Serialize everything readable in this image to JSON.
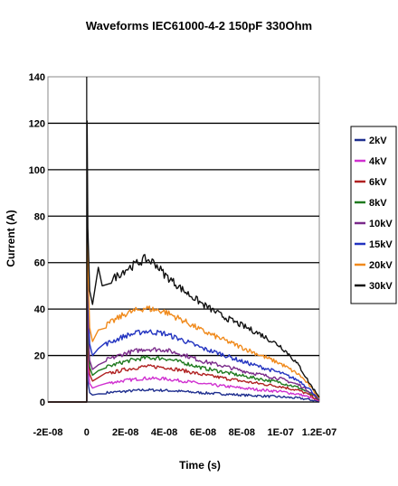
{
  "chart_data": {
    "type": "line",
    "title": "Waveforms IEC61000-4-2 150pF 330Ohm",
    "xlabel": "Time (s)",
    "ylabel": "Current (A)",
    "xlim": [
      -2e-08,
      1.2e-07
    ],
    "ylim": [
      0,
      140
    ],
    "x_tick_labels": [
      "-2E-08",
      "0",
      "2E-08",
      "4E-08",
      "6E-08",
      "8E-08",
      "1E-07",
      "1.2E-07"
    ],
    "y_tick_labels": [
      "0",
      "20",
      "40",
      "60",
      "80",
      "100",
      "120",
      "140"
    ],
    "grid": "horizontal",
    "legend_position": "right",
    "series": [
      {
        "name": "2kV",
        "color": "#1f2f8f",
        "points": [
          [
            -2e-08,
            0
          ],
          [
            -5e-09,
            0
          ],
          [
            0,
            0
          ],
          [
            2e-10,
            16
          ],
          [
            6e-10,
            9
          ],
          [
            1.5e-09,
            4
          ],
          [
            3e-09,
            3
          ],
          [
            6e-09,
            3.5
          ],
          [
            1e-08,
            4
          ],
          [
            2e-08,
            4.6
          ],
          [
            3e-08,
            5.2
          ],
          [
            4e-08,
            5
          ],
          [
            5e-08,
            4.5
          ],
          [
            6e-08,
            3.9
          ],
          [
            7e-08,
            3.5
          ],
          [
            8e-08,
            3
          ],
          [
            9e-08,
            2.6
          ],
          [
            1e-07,
            2.2
          ],
          [
            1.1e-07,
            1.6
          ],
          [
            1.15e-07,
            1
          ],
          [
            1.2e-07,
            0.3
          ]
        ]
      },
      {
        "name": "4kV",
        "color": "#d030d0",
        "points": [
          [
            -2e-08,
            0
          ],
          [
            -5e-09,
            0
          ],
          [
            0,
            0
          ],
          [
            2e-10,
            28
          ],
          [
            6e-10,
            17
          ],
          [
            1.5e-09,
            8
          ],
          [
            3e-09,
            6
          ],
          [
            6e-09,
            7
          ],
          [
            1e-08,
            8
          ],
          [
            2e-08,
            9.3
          ],
          [
            3e-08,
            10.2
          ],
          [
            4e-08,
            10
          ],
          [
            5e-08,
            9
          ],
          [
            6e-08,
            7.8
          ],
          [
            7e-08,
            6.9
          ],
          [
            8e-08,
            6
          ],
          [
            9e-08,
            5.2
          ],
          [
            1e-07,
            4.5
          ],
          [
            1.1e-07,
            3.2
          ],
          [
            1.15e-07,
            2
          ],
          [
            1.2e-07,
            0.5
          ]
        ]
      },
      {
        "name": "6kV",
        "color": "#b02020",
        "points": [
          [
            -2e-08,
            0
          ],
          [
            -5e-09,
            0
          ],
          [
            0,
            0
          ],
          [
            2e-10,
            40
          ],
          [
            6e-10,
            24
          ],
          [
            1.5e-09,
            12
          ],
          [
            3e-09,
            9
          ],
          [
            6e-09,
            10.5
          ],
          [
            1e-08,
            12
          ],
          [
            2e-08,
            14
          ],
          [
            3e-08,
            15.3
          ],
          [
            4e-08,
            15
          ],
          [
            5e-08,
            13.5
          ],
          [
            6e-08,
            11.7
          ],
          [
            7e-08,
            10.4
          ],
          [
            8e-08,
            9
          ],
          [
            9e-08,
            7.8
          ],
          [
            1e-07,
            6.7
          ],
          [
            1.1e-07,
            4.8
          ],
          [
            1.15e-07,
            3
          ],
          [
            1.2e-07,
            0.7
          ]
        ]
      },
      {
        "name": "8kV",
        "color": "#1e7a1e",
        "points": [
          [
            -2e-08,
            0
          ],
          [
            -5e-09,
            0
          ],
          [
            0,
            0
          ],
          [
            2e-10,
            50
          ],
          [
            6e-10,
            30
          ],
          [
            1.5e-09,
            15
          ],
          [
            3e-09,
            11.5
          ],
          [
            6e-09,
            13.5
          ],
          [
            1e-08,
            15
          ],
          [
            2e-08,
            17.5
          ],
          [
            3e-08,
            19
          ],
          [
            4e-08,
            18.8
          ],
          [
            5e-08,
            16.9
          ],
          [
            6e-08,
            14.6
          ],
          [
            7e-08,
            13
          ],
          [
            8e-08,
            11.3
          ],
          [
            9e-08,
            9.8
          ],
          [
            1e-07,
            8.4
          ],
          [
            1.1e-07,
            6
          ],
          [
            1.15e-07,
            3.8
          ],
          [
            1.2e-07,
            0.9
          ]
        ]
      },
      {
        "name": "10kV",
        "color": "#7a2a8a",
        "points": [
          [
            -2e-08,
            0
          ],
          [
            -5e-09,
            0
          ],
          [
            0,
            0
          ],
          [
            2e-10,
            60
          ],
          [
            6e-10,
            36
          ],
          [
            1.5e-09,
            18
          ],
          [
            3e-09,
            14
          ],
          [
            6e-09,
            16
          ],
          [
            1e-08,
            18
          ],
          [
            2e-08,
            21
          ],
          [
            3e-08,
            22.8
          ],
          [
            4e-08,
            22.5
          ],
          [
            5e-08,
            20.3
          ],
          [
            6e-08,
            17.5
          ],
          [
            7e-08,
            15.6
          ],
          [
            8e-08,
            13.5
          ],
          [
            9e-08,
            11.7
          ],
          [
            1e-07,
            10
          ],
          [
            1.1e-07,
            7.2
          ],
          [
            1.15e-07,
            4.5
          ],
          [
            1.2e-07,
            1
          ]
        ]
      },
      {
        "name": "15kV",
        "color": "#2233c0",
        "points": [
          [
            -2e-08,
            0
          ],
          [
            -5e-09,
            0
          ],
          [
            0,
            0
          ],
          [
            2e-10,
            75
          ],
          [
            6e-10,
            45
          ],
          [
            1.5e-09,
            25
          ],
          [
            3e-09,
            20
          ],
          [
            6e-09,
            23
          ],
          [
            1e-08,
            25
          ],
          [
            2e-08,
            28.5
          ],
          [
            3e-08,
            30.5
          ],
          [
            4e-08,
            29.5
          ],
          [
            5e-08,
            26.5
          ],
          [
            6e-08,
            23
          ],
          [
            7e-08,
            20.5
          ],
          [
            8e-08,
            17.5
          ],
          [
            9e-08,
            15
          ],
          [
            1e-07,
            12.5
          ],
          [
            1.1e-07,
            9
          ],
          [
            1.15e-07,
            5.5
          ],
          [
            1.2e-07,
            1.2
          ]
        ]
      },
      {
        "name": "20kV",
        "color": "#f08a1c",
        "points": [
          [
            -2e-08,
            0
          ],
          [
            -5e-09,
            0
          ],
          [
            0,
            0
          ],
          [
            2e-10,
            100
          ],
          [
            6e-10,
            60
          ],
          [
            1.5e-09,
            32
          ],
          [
            3e-09,
            26
          ],
          [
            6e-09,
            31
          ],
          [
            1e-08,
            33
          ],
          [
            2e-08,
            38
          ],
          [
            3e-08,
            40.5
          ],
          [
            4e-08,
            39
          ],
          [
            5e-08,
            35
          ],
          [
            6e-08,
            30.5
          ],
          [
            7e-08,
            27
          ],
          [
            8e-08,
            23.5
          ],
          [
            9e-08,
            20
          ],
          [
            1e-07,
            16.5
          ],
          [
            1.1e-07,
            11.5
          ],
          [
            1.15e-07,
            7
          ],
          [
            1.2e-07,
            1.5
          ]
        ]
      },
      {
        "name": "30kV",
        "color": "#111111",
        "points": [
          [
            -2e-08,
            0
          ],
          [
            -5e-09,
            0
          ],
          [
            0,
            0
          ],
          [
            2e-10,
            121
          ],
          [
            6e-10,
            75
          ],
          [
            1.5e-09,
            48
          ],
          [
            3e-09,
            42
          ],
          [
            6e-09,
            58
          ],
          [
            8e-09,
            50
          ],
          [
            1.2e-08,
            52
          ],
          [
            2e-08,
            57
          ],
          [
            3e-08,
            61.5
          ],
          [
            3.5e-08,
            60
          ],
          [
            4e-08,
            55
          ],
          [
            5e-08,
            48
          ],
          [
            6e-08,
            42
          ],
          [
            7e-08,
            37
          ],
          [
            8e-08,
            33
          ],
          [
            9e-08,
            29
          ],
          [
            1e-07,
            24
          ],
          [
            1.05e-07,
            20
          ],
          [
            1.1e-07,
            15
          ],
          [
            1.15e-07,
            8
          ],
          [
            1.2e-07,
            2
          ]
        ]
      }
    ]
  }
}
